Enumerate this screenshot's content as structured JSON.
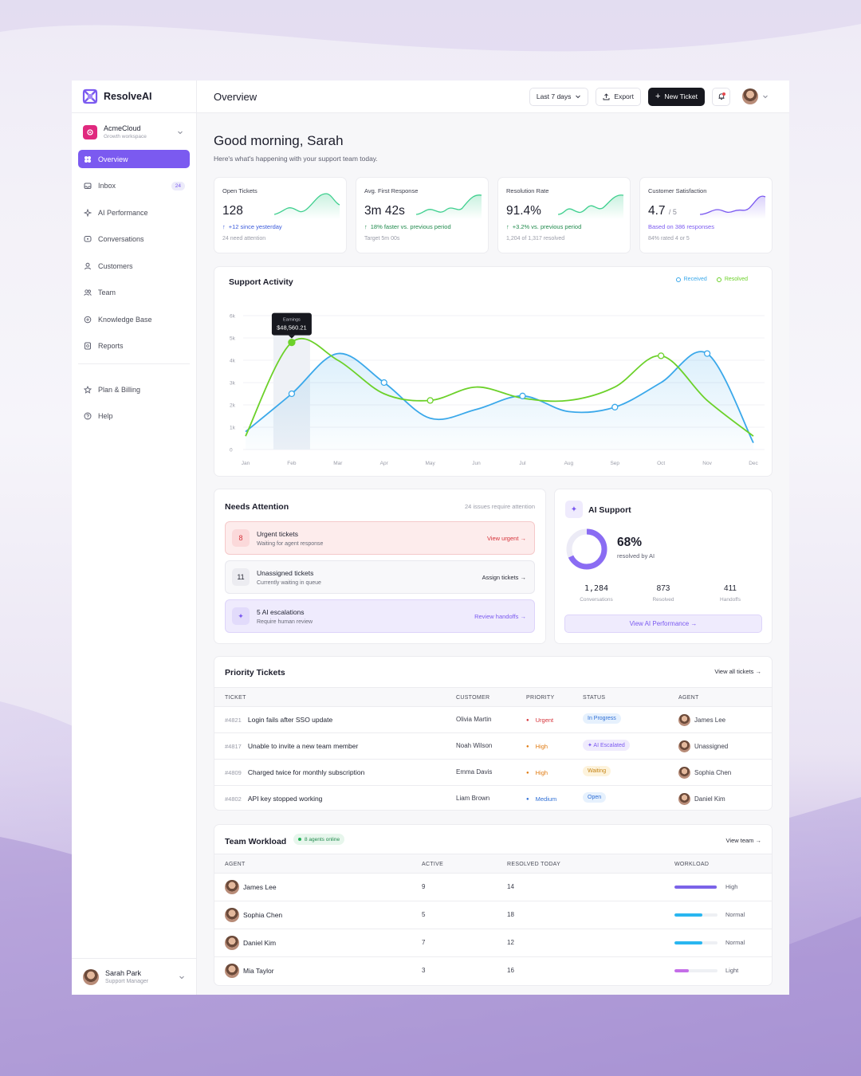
{
  "brand": {
    "name": "ResolveAI",
    "accent": "#7b5af0"
  },
  "workspace": {
    "name": "AcmeCloud",
    "sub": "Growth workspace"
  },
  "nav": {
    "items": [
      {
        "label": "Overview",
        "icon": "grid-icon"
      },
      {
        "label": "Inbox",
        "icon": "inbox-icon",
        "badge": "24"
      },
      {
        "label": "AI Performance",
        "icon": "sparkle-icon"
      },
      {
        "label": "Conversations",
        "icon": "chat-icon"
      },
      {
        "label": "Customers",
        "icon": "user-icon"
      },
      {
        "label": "Team",
        "icon": "users-icon"
      },
      {
        "label": "Knowledge Base",
        "icon": "book-icon"
      },
      {
        "label": "Reports",
        "icon": "report-icon"
      }
    ],
    "secondary": [
      {
        "label": "Plan & Billing",
        "icon": "star-icon"
      },
      {
        "label": "Help",
        "icon": "help-icon"
      }
    ]
  },
  "user": {
    "name": "Sarah Park",
    "role": "Support Manager"
  },
  "topbar": {
    "title": "Overview",
    "range": "Last 7 days",
    "export": "Export",
    "new_ticket": "New Ticket"
  },
  "greeting": {
    "title": "Good morning, Sarah",
    "sub": "Here's what's happening with your support team today."
  },
  "stats": [
    {
      "title": "Open Tickets",
      "value": "128",
      "unit": "",
      "delta": "+12 since yesterday",
      "delta_color": "#3b5bdb",
      "foot": "24 need attention",
      "arrow": "↑"
    },
    {
      "title": "Avg. First Response",
      "value": "3m 42s",
      "unit": "",
      "delta": "18% faster vs. previous period",
      "delta_color": "#1f8a4c",
      "foot": "Target 5m 00s",
      "arrow": "↑"
    },
    {
      "title": "Resolution Rate",
      "value": "91.4%",
      "unit": "",
      "delta": "+3.2% vs. previous period",
      "delta_color": "#1f8a4c",
      "foot": "1,204 of 1,317 resolved",
      "arrow": "↑"
    },
    {
      "title": "Customer Satisfaction",
      "value": "4.7",
      "unit": "/ 5",
      "delta": "Based on 386 responses",
      "delta_color": "#7b5af0",
      "foot": "84% rated 4 or 5",
      "arrow": ""
    }
  ],
  "activity": {
    "title": "Support Activity",
    "legend": [
      "Received",
      "Resolved"
    ],
    "colors": {
      "received": "#3aa8ea",
      "resolved": "#6cd12a"
    },
    "tooltip": {
      "label": "Earnings",
      "value": "$48,560.21"
    },
    "chart_data": {
      "type": "line",
      "x": [
        "Jan",
        "Feb",
        "Mar",
        "Apr",
        "May",
        "Jun",
        "Jul",
        "Aug",
        "Sep",
        "Oct",
        "Nov",
        "Dec"
      ],
      "yticks": [
        "6k",
        "5k",
        "4k",
        "3k",
        "2k",
        "1k",
        "0"
      ],
      "ylim": [
        0,
        6000
      ],
      "series": [
        {
          "name": "Received",
          "values": [
            800,
            2500,
            4300,
            3000,
            1400,
            1800,
            2400,
            1700,
            1900,
            3000,
            4300,
            300
          ]
        },
        {
          "name": "Resolved",
          "values": [
            600,
            4800,
            4000,
            2500,
            2200,
            2800,
            2300,
            2200,
            2800,
            4200,
            2200,
            600
          ]
        }
      ]
    }
  },
  "attention": {
    "title": "Needs Attention",
    "note": "24 issues require attention",
    "rows": [
      {
        "count": "8",
        "title": "Urgent tickets",
        "sub": "Waiting for agent response",
        "link": "View urgent →"
      },
      {
        "count": "11",
        "title": "Unassigned tickets",
        "sub": "Currently waiting in queue",
        "link": "Assign tickets →"
      },
      {
        "count": "✦",
        "title": "5 AI escalations",
        "sub": "Require human review",
        "link": "Review handoffs →"
      }
    ]
  },
  "ai": {
    "title": "AI Support",
    "percent": "68%",
    "resolved_frac": 0.68,
    "label": "resolved by AI",
    "stats": [
      {
        "value": "1,284",
        "label": "Conversations"
      },
      {
        "value": "873",
        "label": "Resolved"
      },
      {
        "value": "411",
        "label": "Handoffs"
      }
    ],
    "cta": "View AI Performance →"
  },
  "priority": {
    "title": "Priority Tickets",
    "link": "View all tickets →",
    "headers": [
      "TICKET",
      "CUSTOMER",
      "PRIORITY",
      "STATUS",
      "AGENT"
    ],
    "rows": [
      {
        "id": "#4821",
        "subject": "Login fails after SSO update",
        "customer": "Olivia Martin",
        "priority": "Urgent",
        "status": "In Progress",
        "agent": "James Lee"
      },
      {
        "id": "#4817",
        "subject": "Unable to invite a new team member",
        "customer": "Noah Wilson",
        "priority": "High",
        "status": "✦ AI Escalated",
        "agent": "Unassigned"
      },
      {
        "id": "#4809",
        "subject": "Charged twice for monthly subscription",
        "customer": "Emma Davis",
        "priority": "High",
        "status": "Waiting",
        "agent": "Sophia Chen"
      },
      {
        "id": "#4802",
        "subject": "API key stopped working",
        "customer": "Liam Brown",
        "priority": "Medium",
        "status": "Open",
        "agent": "Daniel Kim"
      }
    ]
  },
  "workload": {
    "title": "Team Workload",
    "online": "8 agents online",
    "link": "View team →",
    "headers": [
      "AGENT",
      "ACTIVE",
      "RESOLVED TODAY",
      "WORKLOAD"
    ],
    "rows": [
      {
        "agent": "James Lee",
        "active": "9",
        "resolved": "14",
        "level": "High",
        "fill": 0.98,
        "color": "#7b63e8"
      },
      {
        "agent": "Sophia Chen",
        "active": "5",
        "resolved": "18",
        "level": "Normal",
        "fill": 0.65,
        "color": "#29b6f0"
      },
      {
        "agent": "Daniel Kim",
        "active": "7",
        "resolved": "12",
        "level": "Normal",
        "fill": 0.65,
        "color": "#29b6f0"
      },
      {
        "agent": "Mia Taylor",
        "active": "3",
        "resolved": "16",
        "level": "Light",
        "fill": 0.33,
        "color": "#c46ee8"
      }
    ]
  }
}
